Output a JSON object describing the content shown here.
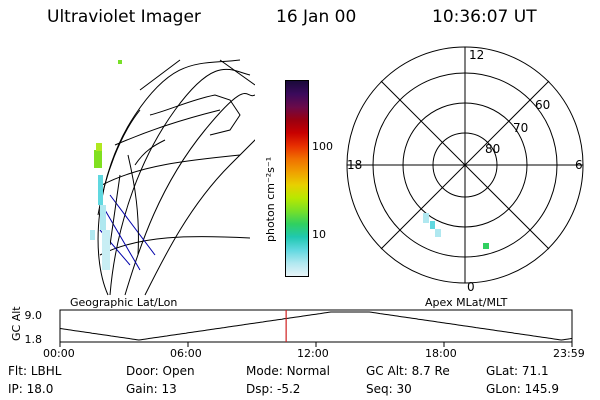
{
  "header": {
    "title": "Ultraviolet Imager",
    "date": "16 Jan 00",
    "time": "10:36:07 UT"
  },
  "colorbar": {
    "unit_label": "photon cm⁻²s⁻¹",
    "ticks": [
      "100",
      "10"
    ],
    "colors": [
      "#1a0a3a",
      "#3b0a5c",
      "#6a0a4a",
      "#9a0010",
      "#c80000",
      "#e83000",
      "#f07000",
      "#f0a000",
      "#e8d000",
      "#b8e800",
      "#78e028",
      "#30d060",
      "#20c8b0",
      "#60d8e0",
      "#b0e8f0",
      "#e8f4f8"
    ]
  },
  "geo_panel": {
    "label": "Geographic Lat/Lon"
  },
  "polar_panel": {
    "label": "Apex MLat/MLT",
    "mlt_labels": [
      "12",
      "18",
      "6",
      "0"
    ],
    "lat_labels": [
      "60",
      "70",
      "80"
    ]
  },
  "altitude_plot": {
    "ylabel": "GC Alt",
    "yticks": [
      "9.0",
      "1.8"
    ],
    "xticks": [
      "00:00",
      "06:00",
      "12:00",
      "18:00",
      "23:59"
    ],
    "current_time_hours": 10.6,
    "marker_color": "#d02020"
  },
  "info_rows": [
    [
      {
        "label": "Flt:",
        "value": "LBHL"
      },
      {
        "label": "Door:",
        "value": "Open"
      },
      {
        "label": "Mode:",
        "value": "Normal"
      },
      {
        "label": "GC Alt:",
        "value": "8.7 Re"
      },
      {
        "label": "GLat:",
        "value": "71.1"
      }
    ],
    [
      {
        "label": "IP:",
        "value": "18.0"
      },
      {
        "label": "Gain:",
        "value": "13"
      },
      {
        "label": "Dsp:",
        "value": "-5.2"
      },
      {
        "label": "Seq:",
        "value": "30"
      },
      {
        "label": "GLon:",
        "value": "145.9"
      }
    ]
  ]
}
